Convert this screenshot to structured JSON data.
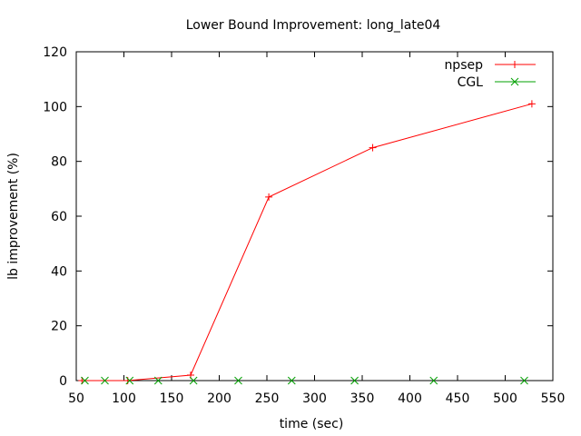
{
  "chart_data": {
    "type": "line",
    "title": "Lower Bound Improvement: long_late04",
    "xlabel": "time (sec)",
    "ylabel": "lb improvement (%)",
    "xlim": [
      50,
      550
    ],
    "ylim": [
      0,
      120
    ],
    "xticks": [
      50,
      100,
      150,
      200,
      250,
      300,
      350,
      400,
      450,
      500,
      550
    ],
    "yticks": [
      0,
      20,
      40,
      60,
      80,
      100,
      120
    ],
    "grid": false,
    "legend_position": "top-right",
    "series": [
      {
        "name": "npsep",
        "color": "#ff0000",
        "marker": "plus",
        "x": [
          56,
          104,
          170,
          252,
          361,
          528
        ],
        "y": [
          0,
          0,
          2,
          67,
          85,
          101
        ]
      },
      {
        "name": "CGL",
        "color": "#00a000",
        "marker": "cross",
        "x": [
          59,
          80,
          106,
          136,
          173,
          220,
          276,
          342,
          425,
          520
        ],
        "y": [
          0,
          0,
          0,
          0,
          0,
          0,
          0,
          0,
          0,
          0
        ]
      }
    ]
  }
}
